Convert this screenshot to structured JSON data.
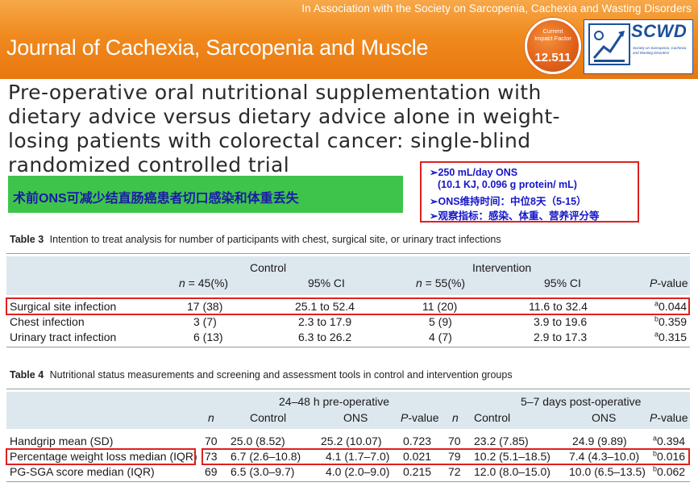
{
  "banner": {
    "association": "In Association with the Society on Sarcopenia, Cachexia and Wasting Disorders",
    "journal": "Journal of Cachexia, Sarcopenia and Muscle",
    "impact_label_1": "Current",
    "impact_label_2": "Impact Factor",
    "impact_value": "12.511",
    "society_abbr": "SCWD",
    "society_full": "Society on Sarcopenia, Cachexia and Wasting Disorders"
  },
  "article": {
    "title_lines": [
      "Pre-operative oral nutritional supplementation with",
      "dietary advice versus dietary advice alone in weight-",
      "losing patients with colorectal cancer: single-blind",
      "randomized controlled trial"
    ],
    "summary_cn": "术前ONS可减少结直肠癌患者切口感染和体重丢失",
    "note_lines": [
      "➢250 mL/day  ONS",
      "(10.1 KJ, 0.096 g protein/ mL)",
      "➢ONS维持时间：中位8天（5-15）",
      "➢观察指标：感染、体重、营养评分等"
    ]
  },
  "table3": {
    "label": "Table 3",
    "caption": "Intention to treat analysis for number of participants with chest, surgical site, or urinary tract infections",
    "group_control": "Control",
    "group_intervention": "Intervention",
    "n_control_italic": "n",
    "n_control_rest": " = 45(%)",
    "n_intervention_italic": "n",
    "n_intervention_rest": " = 55(%)",
    "ci_label": "95% CI",
    "p_italic": "P",
    "p_rest": "-value",
    "rows": [
      {
        "name": "Surgical site infection",
        "control_n": "17 (38)",
        "control_ci": "25.1 to 52.4",
        "int_n": "11 (20)",
        "int_ci": "11.6 to 32.4",
        "p_sup": "a",
        "p": "0.044"
      },
      {
        "name": "Chest infection",
        "control_n": "3 (7)",
        "control_ci": "2.3 to 17.9",
        "int_n": "5 (9)",
        "int_ci": "3.9 to 19.6",
        "p_sup": "b",
        "p": "0.359"
      },
      {
        "name": "Urinary tract infection",
        "control_n": "6 (13)",
        "control_ci": "6.3 to 26.2",
        "int_n": "4 (7)",
        "int_ci": "2.9 to 17.3",
        "p_sup": "a",
        "p": "0.315"
      }
    ]
  },
  "table4": {
    "label": "Table 4",
    "caption": "Nutritional status measurements and screening and assessment tools in control and intervention groups",
    "group_pre": "24–48 h pre-operative",
    "group_post": "5–7 days post-operative",
    "col_n": "n",
    "col_control": "Control",
    "col_ons": "ONS",
    "p_italic": "P",
    "p_rest": "-value",
    "rows": [
      {
        "name": "Handgrip mean (SD)",
        "pre_n": "70",
        "pre_control": "25.0 (8.52)",
        "pre_ons": "25.2 (10.07)",
        "pre_p": "0.723",
        "post_n": "70",
        "post_control": "23.2 (7.85)",
        "post_ons": "24.9 (9.89)",
        "p_sup": "a",
        "post_p": "0.394"
      },
      {
        "name": "Percentage weight loss median (IQR)",
        "pre_n": "73",
        "pre_control": "6.7 (2.6–10.8)",
        "pre_ons": "4.1 (1.7–7.0)",
        "pre_p": "0.021",
        "post_n": "79",
        "post_control": "10.2 (5.1–18.5)",
        "post_ons": "7.4 (4.3–10.0)",
        "p_sup": "b",
        "post_p": "0.016"
      },
      {
        "name": "PG-SGA score median (IQR)",
        "pre_n": "69",
        "pre_control": "6.5 (3.0–9.7)",
        "pre_ons": "4.0 (2.0–9.0)",
        "pre_p": "0.215",
        "post_n": "72",
        "post_control": "12.0 (8.0–15.0)",
        "post_ons": "10.0 (6.5–13.5)",
        "p_sup": "b",
        "post_p": "0.062"
      }
    ]
  },
  "colors": {
    "banner_orange": "#f08a1e",
    "highlight_red": "#e02020",
    "summary_green": "#3ec44a",
    "note_blue": "#1515c8",
    "table_header": "#dde7ee"
  }
}
